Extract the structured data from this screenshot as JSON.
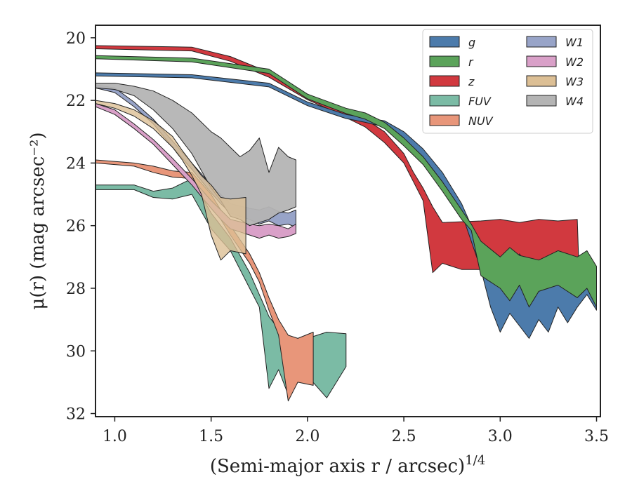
{
  "chart_data": {
    "type": "area",
    "xlabel": "(Semi-major axis r / arcsec)",
    "xlabel_superscript": "1/4",
    "ylabel": "μ(r) (mag arcsec⁻²)",
    "xlim": [
      0.9,
      3.52
    ],
    "ylim": [
      32.1,
      19.6
    ],
    "y_inverted": true,
    "xticks": [
      "1.0",
      "1.5",
      "2.0",
      "2.5",
      "3.0",
      "3.5"
    ],
    "yticks": [
      "20",
      "22",
      "24",
      "26",
      "28",
      "30",
      "32"
    ],
    "grid": false,
    "legend_position": "top-right",
    "series": [
      {
        "name": "g",
        "color": "#4c7bab",
        "upper": [
          [
            0.9,
            21.12
          ],
          [
            1.4,
            21.18
          ],
          [
            1.8,
            21.45
          ],
          [
            2.0,
            22.05
          ],
          [
            2.2,
            22.45
          ],
          [
            2.3,
            22.55
          ],
          [
            2.4,
            22.65
          ],
          [
            2.5,
            23.0
          ],
          [
            2.6,
            23.55
          ],
          [
            2.7,
            24.3
          ],
          [
            2.8,
            25.3
          ],
          [
            2.85,
            26.0
          ],
          [
            2.9,
            26.6
          ],
          [
            2.95,
            27.1
          ],
          [
            3.0,
            27.4
          ],
          [
            3.05,
            27.3
          ],
          [
            3.1,
            26.9
          ],
          [
            3.2,
            27.8
          ],
          [
            3.3,
            27.6
          ],
          [
            3.35,
            27.2
          ],
          [
            3.4,
            27.9
          ],
          [
            3.45,
            27.6
          ],
          [
            3.5,
            28.0
          ]
        ],
        "lower": [
          [
            0.9,
            21.22
          ],
          [
            1.4,
            21.28
          ],
          [
            1.8,
            21.57
          ],
          [
            2.0,
            22.17
          ],
          [
            2.2,
            22.58
          ],
          [
            2.3,
            22.7
          ],
          [
            2.4,
            22.85
          ],
          [
            2.5,
            23.25
          ],
          [
            2.6,
            23.8
          ],
          [
            2.7,
            24.6
          ],
          [
            2.8,
            25.6
          ],
          [
            2.9,
            27.4
          ],
          [
            2.95,
            28.6
          ],
          [
            3.0,
            29.4
          ],
          [
            3.05,
            28.8
          ],
          [
            3.1,
            29.2
          ],
          [
            3.15,
            29.6
          ],
          [
            3.2,
            29.0
          ],
          [
            3.25,
            29.4
          ],
          [
            3.3,
            28.6
          ],
          [
            3.35,
            29.1
          ],
          [
            3.4,
            28.6
          ],
          [
            3.45,
            28.2
          ],
          [
            3.5,
            28.7
          ]
        ]
      },
      {
        "name": "r",
        "color": "#5ba35a",
        "upper": [
          [
            0.9,
            20.57
          ],
          [
            1.4,
            20.65
          ],
          [
            1.8,
            21.0
          ],
          [
            2.0,
            21.8
          ],
          [
            2.2,
            22.25
          ],
          [
            2.3,
            22.4
          ],
          [
            2.4,
            22.7
          ],
          [
            2.5,
            23.2
          ],
          [
            2.6,
            23.8
          ],
          [
            2.7,
            24.6
          ],
          [
            2.8,
            25.5
          ],
          [
            2.85,
            25.95
          ],
          [
            2.9,
            26.5
          ],
          [
            3.0,
            27.0
          ],
          [
            3.05,
            26.7
          ],
          [
            3.1,
            26.95
          ],
          [
            3.2,
            27.1
          ],
          [
            3.3,
            26.8
          ],
          [
            3.4,
            27.0
          ],
          [
            3.45,
            26.8
          ],
          [
            3.5,
            27.3
          ]
        ],
        "lower": [
          [
            0.9,
            20.67
          ],
          [
            1.4,
            20.77
          ],
          [
            1.8,
            21.14
          ],
          [
            2.0,
            21.95
          ],
          [
            2.2,
            22.42
          ],
          [
            2.3,
            22.6
          ],
          [
            2.4,
            22.9
          ],
          [
            2.5,
            23.45
          ],
          [
            2.6,
            24.05
          ],
          [
            2.7,
            24.9
          ],
          [
            2.8,
            25.8
          ],
          [
            2.85,
            26.15
          ],
          [
            2.9,
            27.6
          ],
          [
            3.0,
            28.0
          ],
          [
            3.05,
            28.4
          ],
          [
            3.1,
            27.9
          ],
          [
            3.15,
            28.6
          ],
          [
            3.2,
            28.1
          ],
          [
            3.3,
            27.9
          ],
          [
            3.4,
            28.3
          ],
          [
            3.45,
            28.0
          ],
          [
            3.5,
            28.6
          ]
        ]
      },
      {
        "name": "z",
        "color": "#d1393f",
        "upper": [
          [
            0.9,
            20.25
          ],
          [
            1.4,
            20.3
          ],
          [
            1.6,
            20.6
          ],
          [
            1.8,
            21.1
          ],
          [
            2.0,
            21.8
          ],
          [
            2.1,
            22.05
          ],
          [
            2.2,
            22.35
          ],
          [
            2.3,
            22.6
          ],
          [
            2.4,
            23.0
          ],
          [
            2.5,
            23.7
          ],
          [
            2.55,
            24.3
          ],
          [
            2.6,
            24.8
          ],
          [
            2.65,
            25.4
          ],
          [
            2.7,
            25.9
          ],
          [
            2.9,
            25.85
          ],
          [
            3.0,
            25.8
          ],
          [
            3.1,
            25.9
          ],
          [
            3.2,
            25.8
          ],
          [
            3.3,
            25.85
          ],
          [
            3.4,
            25.8
          ],
          [
            3.41,
            27.6
          ]
        ],
        "lower": [
          [
            0.9,
            20.35
          ],
          [
            1.4,
            20.42
          ],
          [
            1.6,
            20.75
          ],
          [
            1.8,
            21.26
          ],
          [
            2.0,
            21.98
          ],
          [
            2.1,
            22.25
          ],
          [
            2.2,
            22.55
          ],
          [
            2.3,
            22.85
          ],
          [
            2.4,
            23.35
          ],
          [
            2.5,
            24.0
          ],
          [
            2.55,
            24.6
          ],
          [
            2.6,
            25.2
          ],
          [
            2.65,
            27.5
          ],
          [
            2.7,
            27.2
          ],
          [
            2.8,
            27.4
          ],
          [
            3.0,
            27.4
          ],
          [
            3.1,
            27.5
          ],
          [
            3.2,
            27.8
          ],
          [
            3.3,
            27.6
          ],
          [
            3.41,
            27.6
          ]
        ]
      },
      {
        "name": "FUV",
        "color": "#7bbba5",
        "upper": [
          [
            0.9,
            24.7
          ],
          [
            1.1,
            24.7
          ],
          [
            1.2,
            24.9
          ],
          [
            1.3,
            24.8
          ],
          [
            1.4,
            24.5
          ],
          [
            1.5,
            25.6
          ],
          [
            1.6,
            26.4
          ],
          [
            1.7,
            27.5
          ],
          [
            1.75,
            28.2
          ],
          [
            1.8,
            28.9
          ],
          [
            1.85,
            29.3
          ],
          [
            1.9,
            29.7
          ],
          [
            2.0,
            29.6
          ],
          [
            2.1,
            29.4
          ],
          [
            2.2,
            29.45
          ]
        ],
        "lower": [
          [
            0.9,
            24.85
          ],
          [
            1.1,
            24.85
          ],
          [
            1.2,
            25.1
          ],
          [
            1.3,
            25.15
          ],
          [
            1.4,
            25.0
          ],
          [
            1.5,
            26.1
          ],
          [
            1.6,
            26.8
          ],
          [
            1.7,
            28.0
          ],
          [
            1.75,
            28.6
          ],
          [
            1.8,
            31.2
          ],
          [
            1.85,
            30.6
          ],
          [
            1.9,
            31.4
          ],
          [
            1.95,
            31.0
          ],
          [
            2.0,
            30.8
          ],
          [
            2.1,
            31.5
          ],
          [
            2.2,
            30.5
          ]
        ]
      },
      {
        "name": "NUV",
        "color": "#e8967a",
        "upper": [
          [
            0.9,
            23.9
          ],
          [
            1.1,
            24.0
          ],
          [
            1.2,
            24.1
          ],
          [
            1.3,
            24.25
          ],
          [
            1.4,
            24.3
          ],
          [
            1.5,
            25.0
          ],
          [
            1.6,
            26.0
          ],
          [
            1.7,
            26.9
          ],
          [
            1.75,
            27.5
          ],
          [
            1.8,
            28.3
          ],
          [
            1.85,
            29.0
          ],
          [
            1.9,
            29.5
          ],
          [
            1.95,
            29.6
          ],
          [
            2.03,
            29.4
          ]
        ],
        "lower": [
          [
            0.9,
            24.0
          ],
          [
            1.1,
            24.1
          ],
          [
            1.2,
            24.3
          ],
          [
            1.3,
            24.45
          ],
          [
            1.4,
            24.5
          ],
          [
            1.5,
            25.3
          ],
          [
            1.6,
            26.3
          ],
          [
            1.7,
            27.2
          ],
          [
            1.75,
            27.8
          ],
          [
            1.8,
            28.7
          ],
          [
            1.85,
            29.5
          ],
          [
            1.9,
            31.6
          ],
          [
            1.95,
            31.0
          ],
          [
            2.03,
            31.1
          ]
        ]
      },
      {
        "name": "W1",
        "color": "#98a4c8",
        "upper": [
          [
            0.9,
            21.5
          ],
          [
            1.0,
            21.6
          ],
          [
            1.1,
            22.05
          ],
          [
            1.2,
            22.6
          ],
          [
            1.3,
            23.3
          ],
          [
            1.4,
            24.0
          ],
          [
            1.5,
            24.7
          ],
          [
            1.55,
            25.0
          ],
          [
            1.6,
            25.3
          ],
          [
            1.7,
            25.45
          ],
          [
            1.75,
            25.5
          ],
          [
            1.8,
            25.4
          ],
          [
            1.85,
            25.55
          ],
          [
            1.9,
            25.6
          ],
          [
            1.94,
            25.5
          ]
        ],
        "lower": [
          [
            0.9,
            21.6
          ],
          [
            1.0,
            21.75
          ],
          [
            1.1,
            22.2
          ],
          [
            1.2,
            22.75
          ],
          [
            1.3,
            23.5
          ],
          [
            1.4,
            24.2
          ],
          [
            1.5,
            24.95
          ],
          [
            1.55,
            25.3
          ],
          [
            1.6,
            25.6
          ],
          [
            1.7,
            25.8
          ],
          [
            1.75,
            25.95
          ],
          [
            1.8,
            25.85
          ],
          [
            1.85,
            26.0
          ],
          [
            1.9,
            25.95
          ],
          [
            1.94,
            26.05
          ]
        ]
      },
      {
        "name": "W2",
        "color": "#d9a0c8",
        "upper": [
          [
            0.9,
            22.1
          ],
          [
            1.0,
            22.3
          ],
          [
            1.1,
            22.75
          ],
          [
            1.2,
            23.25
          ],
          [
            1.3,
            23.85
          ],
          [
            1.4,
            24.5
          ],
          [
            1.5,
            25.2
          ],
          [
            1.55,
            25.5
          ],
          [
            1.6,
            25.8
          ],
          [
            1.7,
            25.95
          ],
          [
            1.75,
            26.0
          ],
          [
            1.8,
            25.95
          ],
          [
            1.85,
            26.0
          ],
          [
            1.9,
            26.1
          ],
          [
            1.94,
            25.95
          ]
        ],
        "lower": [
          [
            0.9,
            22.2
          ],
          [
            1.0,
            22.45
          ],
          [
            1.1,
            22.9
          ],
          [
            1.2,
            23.4
          ],
          [
            1.3,
            24.05
          ],
          [
            1.4,
            24.7
          ],
          [
            1.5,
            25.45
          ],
          [
            1.55,
            25.8
          ],
          [
            1.6,
            26.1
          ],
          [
            1.7,
            26.3
          ],
          [
            1.75,
            26.4
          ],
          [
            1.8,
            26.3
          ],
          [
            1.85,
            26.4
          ],
          [
            1.9,
            26.35
          ],
          [
            1.94,
            26.25
          ]
        ]
      },
      {
        "name": "W3",
        "color": "#dcbf95",
        "upper": [
          [
            0.9,
            22.0
          ],
          [
            1.0,
            22.1
          ],
          [
            1.1,
            22.3
          ],
          [
            1.2,
            22.65
          ],
          [
            1.3,
            23.15
          ],
          [
            1.35,
            23.6
          ],
          [
            1.4,
            24.0
          ],
          [
            1.45,
            24.4
          ],
          [
            1.5,
            24.7
          ],
          [
            1.55,
            25.1
          ],
          [
            1.6,
            25.15
          ],
          [
            1.68,
            25.1
          ]
        ],
        "lower": [
          [
            0.9,
            22.1
          ],
          [
            1.0,
            22.25
          ],
          [
            1.1,
            22.5
          ],
          [
            1.2,
            22.9
          ],
          [
            1.3,
            23.5
          ],
          [
            1.35,
            23.9
          ],
          [
            1.4,
            24.4
          ],
          [
            1.45,
            25.0
          ],
          [
            1.5,
            26.3
          ],
          [
            1.55,
            27.1
          ],
          [
            1.6,
            26.8
          ],
          [
            1.68,
            26.9
          ]
        ]
      },
      {
        "name": "W4",
        "color": "#b4b4b4",
        "upper": [
          [
            0.9,
            21.45
          ],
          [
            1.0,
            21.45
          ],
          [
            1.05,
            21.5
          ],
          [
            1.1,
            21.55
          ],
          [
            1.2,
            21.7
          ],
          [
            1.3,
            22.0
          ],
          [
            1.4,
            22.4
          ],
          [
            1.5,
            23.0
          ],
          [
            1.55,
            23.2
          ],
          [
            1.6,
            23.5
          ],
          [
            1.65,
            23.8
          ],
          [
            1.7,
            23.6
          ],
          [
            1.75,
            23.2
          ],
          [
            1.8,
            24.3
          ],
          [
            1.85,
            23.5
          ],
          [
            1.9,
            23.8
          ],
          [
            1.94,
            23.9
          ]
        ],
        "lower": [
          [
            0.9,
            21.6
          ],
          [
            1.0,
            21.65
          ],
          [
            1.05,
            21.75
          ],
          [
            1.1,
            21.85
          ],
          [
            1.2,
            22.3
          ],
          [
            1.3,
            22.9
          ],
          [
            1.4,
            23.7
          ],
          [
            1.5,
            24.8
          ],
          [
            1.55,
            25.2
          ],
          [
            1.6,
            25.7
          ],
          [
            1.65,
            25.8
          ],
          [
            1.7,
            26.0
          ],
          [
            1.75,
            25.9
          ],
          [
            1.8,
            25.8
          ],
          [
            1.85,
            25.6
          ],
          [
            1.9,
            25.5
          ],
          [
            1.94,
            25.4
          ]
        ]
      }
    ]
  }
}
